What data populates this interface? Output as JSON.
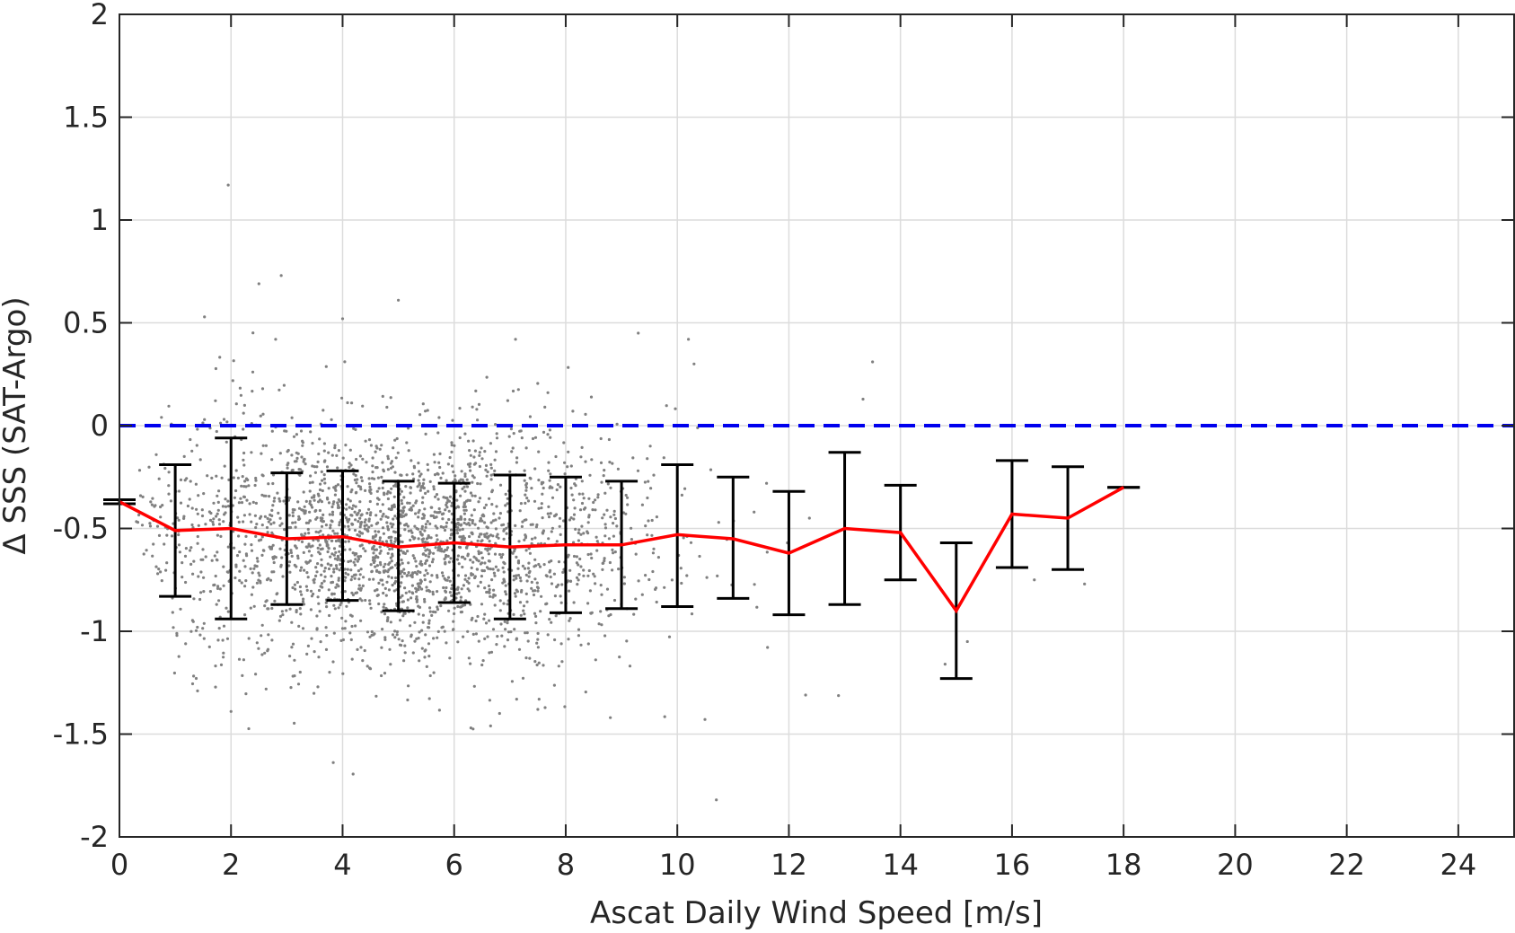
{
  "chart_data": {
    "type": "scatter",
    "title": "",
    "xlabel": "Ascat Daily Wind Speed [m/s]",
    "ylabel": "Δ SSS (SAT-Argo)",
    "xlim": [
      0,
      25
    ],
    "ylim": [
      -2,
      2
    ],
    "xticks": [
      0,
      2,
      4,
      6,
      8,
      10,
      12,
      14,
      16,
      18,
      20,
      22,
      24
    ],
    "yticks": [
      2,
      1.5,
      1,
      0.5,
      0,
      -0.5,
      -1,
      -1.5,
      -2
    ],
    "ytick_labels": [
      "2",
      "1.5",
      "1",
      "0.5",
      "0",
      "-0.5",
      "-1",
      "-1.5",
      "-2"
    ],
    "grid": true,
    "reference_line": {
      "y": 0,
      "style": "dashed",
      "color": "#0000ee"
    },
    "scatter_color": "#808080",
    "mean_line_color": "#ff0000",
    "errorbar_color": "#000000",
    "binned_stats": {
      "x": [
        0,
        1,
        2,
        3,
        4,
        5,
        6,
        7,
        8,
        9,
        10,
        11,
        12,
        13,
        14,
        15,
        16,
        17,
        18
      ],
      "mean": [
        -0.37,
        -0.51,
        -0.5,
        -0.55,
        -0.54,
        -0.59,
        -0.57,
        -0.59,
        -0.58,
        -0.58,
        -0.53,
        -0.55,
        -0.62,
        -0.5,
        -0.52,
        -0.9,
        -0.43,
        -0.45,
        -0.3
      ],
      "upper": [
        -0.36,
        -0.19,
        -0.06,
        -0.23,
        -0.22,
        -0.27,
        -0.28,
        -0.24,
        -0.25,
        -0.27,
        -0.19,
        -0.25,
        -0.32,
        -0.13,
        -0.29,
        -0.57,
        -0.17,
        -0.2,
        -0.3
      ],
      "lower": [
        -0.38,
        -0.83,
        -0.94,
        -0.87,
        -0.85,
        -0.9,
        -0.86,
        -0.94,
        -0.91,
        -0.89,
        -0.88,
        -0.84,
        -0.92,
        -0.87,
        -0.75,
        -1.23,
        -0.69,
        -0.7,
        -0.3
      ]
    },
    "scatter_outliers": [
      [
        1.95,
        1.17
      ],
      [
        2.5,
        0.69
      ],
      [
        2.9,
        0.73
      ],
      [
        2.8,
        0.42
      ],
      [
        4.0,
        0.52
      ],
      [
        5.0,
        0.61
      ],
      [
        7.1,
        0.42
      ],
      [
        9.3,
        0.45
      ],
      [
        10.2,
        0.42
      ],
      [
        10.3,
        0.3
      ],
      [
        13.5,
        0.31
      ],
      [
        10.7,
        -1.82
      ],
      [
        8.8,
        -1.42
      ],
      [
        6.3,
        -1.47
      ],
      [
        7.5,
        -1.38
      ],
      [
        1.4,
        -1.29
      ],
      [
        2.0,
        -1.39
      ],
      [
        12.3,
        -1.31
      ],
      [
        14.8,
        -1.16
      ],
      [
        15.2,
        -1.05
      ],
      [
        16.4,
        -0.75
      ],
      [
        17.3,
        -0.77
      ]
    ]
  }
}
